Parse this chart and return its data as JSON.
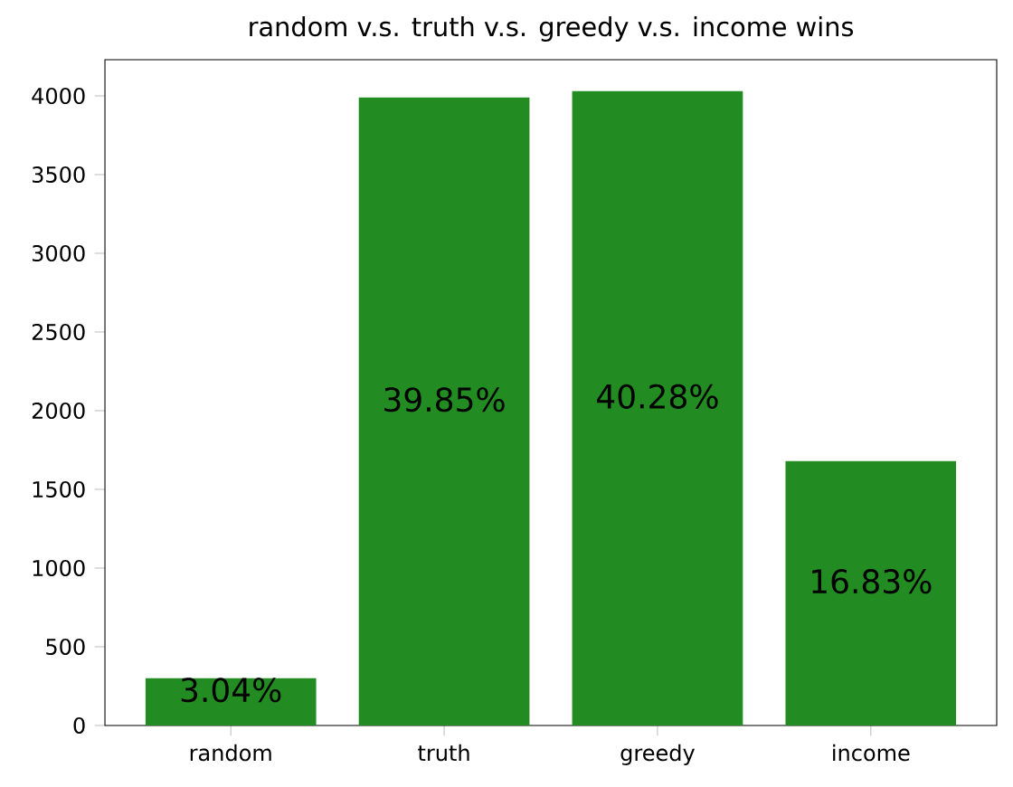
{
  "chart_data": {
    "type": "bar",
    "title": "random v.s. truth v.s. greedy v.s. income wins",
    "categories": [
      "random",
      "truth",
      "greedy",
      "income"
    ],
    "values": [
      300,
      3990,
      4030,
      1680
    ],
    "annotations": [
      "3.04%",
      "39.85%",
      "40.28%",
      "16.83%"
    ],
    "color": "#228b22",
    "ylim": [
      0,
      4230
    ],
    "yticks": [
      0,
      500,
      1000,
      1500,
      2000,
      2500,
      3000,
      3500,
      4000
    ],
    "grid": false
  }
}
